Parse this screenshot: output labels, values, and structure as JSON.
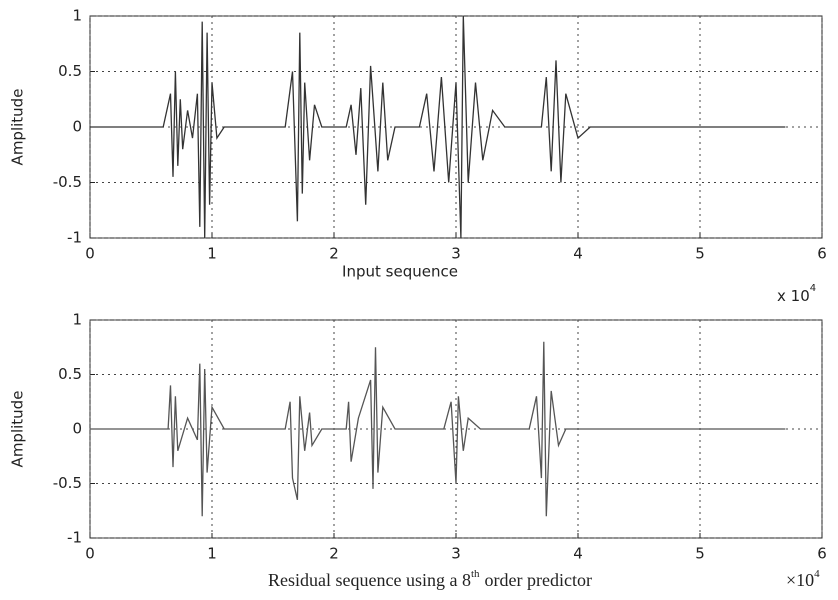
{
  "chart_data": [
    {
      "type": "line",
      "ylabel": "Amplitude",
      "xlabel": "Input sequence",
      "x_multiplier": {
        "base": "x 10",
        "exponent": "4"
      },
      "xlim": [
        0,
        6
      ],
      "xticks": [
        0,
        1,
        2,
        3,
        4,
        5,
        6
      ],
      "ylim": [
        -1,
        1
      ],
      "yticks": [
        -1,
        -0.5,
        0,
        0.5,
        1
      ],
      "grid": true,
      "color": "#333333",
      "x": [
        0,
        0.6,
        0.66,
        0.68,
        0.7,
        0.72,
        0.74,
        0.76,
        0.8,
        0.84,
        0.88,
        0.9,
        0.92,
        0.94,
        0.96,
        0.98,
        1.0,
        1.04,
        1.1,
        1.6,
        1.66,
        1.7,
        1.72,
        1.74,
        1.76,
        1.8,
        1.84,
        1.9,
        2.1,
        2.14,
        2.18,
        2.22,
        2.26,
        2.3,
        2.36,
        2.4,
        2.44,
        2.5,
        2.7,
        2.76,
        2.82,
        2.88,
        2.94,
        3.0,
        3.04,
        3.06,
        3.1,
        3.16,
        3.22,
        3.3,
        3.4,
        3.7,
        3.74,
        3.78,
        3.82,
        3.86,
        3.9,
        4.0,
        4.1,
        5.7
      ],
      "values": [
        0,
        0,
        0.3,
        -0.45,
        0.5,
        -0.35,
        0.25,
        -0.2,
        0.15,
        -0.1,
        0.3,
        -0.9,
        0.95,
        -1,
        0.85,
        -0.7,
        0.4,
        -0.1,
        0,
        0,
        0.5,
        -0.85,
        0.85,
        -0.6,
        0.4,
        -0.3,
        0.2,
        0,
        0,
        0.2,
        -0.25,
        0.35,
        -0.7,
        0.55,
        -0.4,
        0.4,
        -0.3,
        0,
        0,
        0.3,
        -0.4,
        0.45,
        -0.5,
        0.4,
        -1,
        1,
        -0.5,
        0.4,
        -0.3,
        0.15,
        0,
        0,
        0.45,
        -0.4,
        0.6,
        -0.5,
        0.3,
        -0.1,
        0,
        0
      ]
    },
    {
      "type": "line",
      "ylabel": "Amplitude",
      "xlabel": "Residual sequence using a 8",
      "xlabel_sup": "th",
      "xlabel_end": "order predictor",
      "x_multiplier": {
        "base": "×10",
        "exponent": "4"
      },
      "xlim": [
        0,
        6
      ],
      "xticks": [
        0,
        1,
        2,
        3,
        4,
        5,
        6
      ],
      "ylim": [
        -1,
        1
      ],
      "yticks": [
        -1,
        -0.5,
        0,
        0.5,
        1
      ],
      "grid": true,
      "color": "#555555",
      "x": [
        0,
        0.64,
        0.66,
        0.68,
        0.7,
        0.72,
        0.8,
        0.88,
        0.9,
        0.92,
        0.94,
        0.96,
        1.0,
        1.1,
        1.6,
        1.64,
        1.66,
        1.7,
        1.72,
        1.76,
        1.8,
        1.82,
        1.9,
        2.1,
        2.12,
        2.14,
        2.2,
        2.3,
        2.32,
        2.34,
        2.36,
        2.4,
        2.5,
        2.9,
        2.96,
        3.0,
        3.02,
        3.06,
        3.1,
        3.2,
        3.6,
        3.66,
        3.7,
        3.72,
        3.74,
        3.78,
        3.84,
        3.9,
        5.7
      ],
      "values": [
        0,
        0,
        0.4,
        -0.35,
        0.3,
        -0.2,
        0.1,
        -0.1,
        0.6,
        -0.8,
        0.55,
        -0.4,
        0.2,
        0,
        0,
        0.25,
        -0.45,
        -0.65,
        0.3,
        -0.2,
        0.15,
        -0.15,
        0,
        0,
        0.25,
        -0.3,
        0.1,
        0.45,
        -0.55,
        0.75,
        -0.4,
        0.2,
        0,
        0,
        0.25,
        -0.5,
        0.3,
        -0.2,
        0.1,
        0,
        0,
        0.3,
        -0.45,
        0.8,
        -0.8,
        0.35,
        -0.15,
        0,
        0
      ]
    }
  ]
}
